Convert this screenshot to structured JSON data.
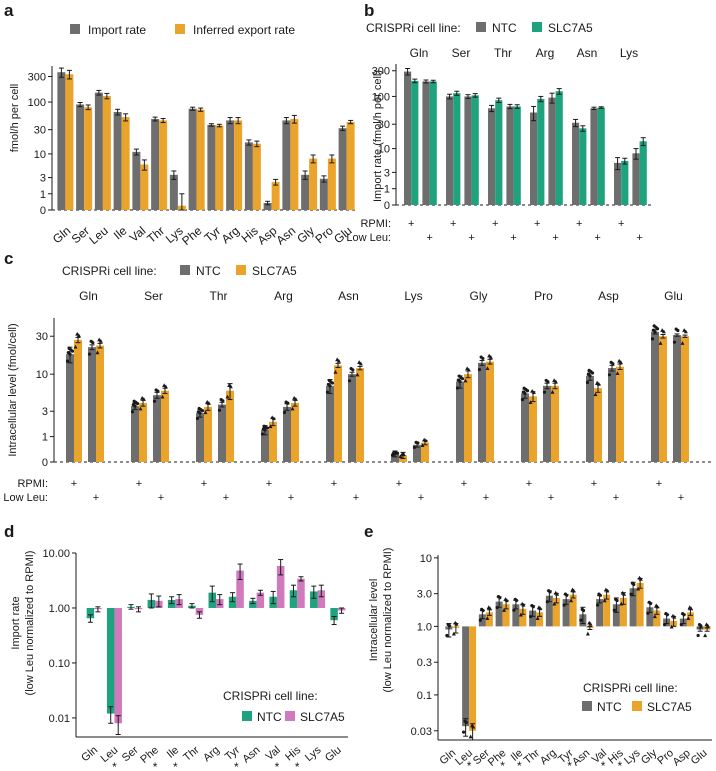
{
  "colors": {
    "gray": "#6e6e6e",
    "orange": "#eaa42b",
    "green": "#1fa37f",
    "pink": "#d079bd",
    "dark": "#1a1a1a"
  },
  "chart_data": [
    {
      "panel": "a",
      "type": "bar",
      "title": "",
      "ylabel": "fmol/h per cell",
      "xlabel": "",
      "yscale": "pseudo-log",
      "yticks": [
        "0",
        "1",
        "3",
        "10",
        "30",
        "100",
        "300"
      ],
      "legend": {
        "placement": "top",
        "items": [
          "Import rate",
          "Inferred export rate"
        ]
      },
      "categories": [
        "Gln",
        "Ser",
        "Leu",
        "Ile",
        "Val",
        "Thr",
        "Lys",
        "Phe",
        "Tyr",
        "Arg",
        "His",
        "Asp",
        "Asn",
        "Gly",
        "Pro",
        "Glu"
      ],
      "series": [
        {
          "name": "Import rate",
          "color": "gray",
          "values": [
            360,
            90,
            150,
            65,
            11,
            48,
            3.5,
            75,
            37,
            45,
            17,
            0.35,
            45,
            3.5,
            2.8,
            32
          ],
          "errors": [
            70,
            8,
            15,
            8,
            1.5,
            4,
            0.8,
            5,
            2,
            6,
            2,
            0.1,
            6,
            0.8,
            0.5,
            3
          ]
        },
        {
          "name": "Inferred export rate",
          "color": "orange",
          "values": [
            330,
            80,
            130,
            52,
            6,
            45,
            0.2,
            72,
            36,
            45,
            16,
            2.3,
            48,
            8,
            8,
            42
          ],
          "errors": [
            60,
            8,
            15,
            8,
            1.5,
            4,
            0.8,
            5,
            2,
            6,
            2,
            0.4,
            8,
            1.5,
            1.5,
            3
          ]
        }
      ]
    },
    {
      "panel": "b",
      "type": "bar",
      "title": "",
      "ylabel": "Import rate (fmol/h per cell)",
      "yscale": "pseudo-log",
      "yticks": [
        "0",
        "1",
        "3",
        "10",
        "30",
        "100",
        "300"
      ],
      "legend": {
        "placement": "top",
        "title": "CRISPRi cell line:",
        "items": [
          "NTC",
          "SLC7A5"
        ]
      },
      "categories": [
        "Gln",
        "Ser",
        "Thr",
        "Arg",
        "Asn",
        "Lys"
      ],
      "condition_rows": [
        "RPMI:",
        "Low Leu:"
      ],
      "condition_marks": [
        "+",
        "+"
      ],
      "series": [
        {
          "name": "NTC RPMI",
          "color": "gray",
          "values": [
            290,
            100,
            60,
            50,
            32,
            5
          ],
          "errors": [
            40,
            10,
            8,
            15,
            5,
            1.5
          ]
        },
        {
          "name": "SLC7A5 RPMI",
          "color": "green",
          "values": [
            195,
            115,
            85,
            90,
            25,
            5.5
          ],
          "errors": [
            15,
            10,
            8,
            10,
            3,
            0.8
          ]
        },
        {
          "name": "NTC Low Leu",
          "color": "gray",
          "values": [
            190,
            100,
            65,
            95,
            60,
            8
          ],
          "errors": [
            12,
            8,
            6,
            20,
            3,
            2
          ]
        },
        {
          "name": "SLC7A5 Low Leu",
          "color": "green",
          "values": [
            190,
            105,
            65,
            125,
            62,
            14
          ],
          "errors": [
            10,
            8,
            5,
            15,
            2,
            2.5
          ]
        }
      ]
    },
    {
      "panel": "c",
      "type": "bar",
      "title": "",
      "ylabel": "Intracellular level (fmol/cell)",
      "yscale": "pseudo-log",
      "yticks": [
        "0",
        "1",
        "3",
        "10",
        "30"
      ],
      "legend": {
        "placement": "top",
        "title": "CRISPRi cell line:",
        "items": [
          "NTC",
          "SLC7A5"
        ]
      },
      "categories": [
        "Gln",
        "Ser",
        "Thr",
        "Arg",
        "Asn",
        "Lys",
        "Gly",
        "Pro",
        "Asp",
        "Glu"
      ],
      "condition_rows": [
        "RPMI:",
        "Low Leu:"
      ],
      "condition_marks": [
        "+",
        "+"
      ],
      "series": [
        {
          "name": "NTC RPMI",
          "color": "gray",
          "values": [
            18,
            3.6,
            2.8,
            1.4,
            7,
            0.25,
            8,
            5.5,
            9.5,
            34
          ],
          "errors": [
            4,
            0.4,
            0.4,
            0.3,
            1.5,
            0.1,
            1.5,
            0.8,
            1.2,
            2
          ]
        },
        {
          "name": "SLC7A5 RPMI",
          "color": "orange",
          "values": [
            27,
            4,
            3.5,
            2,
            13,
            0.2,
            10,
            5,
            6.5,
            30
          ],
          "errors": [
            2,
            0.4,
            0.4,
            0.3,
            0.8,
            0.1,
            1,
            0.8,
            0.8,
            1.5
          ]
        },
        {
          "name": "NTC Low Leu",
          "color": "gray",
          "values": [
            22,
            5.2,
            3.8,
            3.5,
            10,
            0.6,
            14,
            7,
            12,
            31
          ],
          "errors": [
            1.5,
            0.5,
            0.3,
            0.4,
            0.6,
            0.1,
            1,
            0.6,
            1,
            1
          ]
        },
        {
          "name": "SLC7A5 Low Leu",
          "color": "orange",
          "values": [
            23,
            6,
            6,
            4,
            12,
            0.7,
            14.5,
            7,
            12.5,
            30
          ],
          "errors": [
            1.5,
            0.5,
            1.5,
            0.4,
            0.6,
            0.1,
            1,
            0.6,
            1,
            1
          ]
        }
      ]
    },
    {
      "panel": "d",
      "type": "bar",
      "title": "",
      "ylabel": "Import rate",
      "ylabel2": "(low Leu normalized to RPMI)",
      "yscale": "log",
      "baseline": 1,
      "yticks": [
        "0.01",
        "0.10",
        "1.00",
        "10.00"
      ],
      "legend": {
        "placement": "bottom-right",
        "title": "CRISPRi cell line:",
        "items": [
          "NTC",
          "SLC7A5"
        ]
      },
      "categories": [
        "Gln",
        "Leu",
        "Ser",
        "Phe",
        "Ile",
        "Thr",
        "Arg",
        "Tyr",
        "Asn",
        "Val",
        "His",
        "Lys",
        "Glu"
      ],
      "significance_mark": "*",
      "significant": [
        "Leu",
        "Phe",
        "Ile",
        "Tyr",
        "Val",
        "His"
      ],
      "series": [
        {
          "name": "NTC",
          "color": "green",
          "values": [
            0.65,
            0.012,
            1.05,
            1.4,
            1.4,
            1.1,
            1.9,
            1.6,
            1.35,
            1.6,
            2.1,
            2.0,
            0.6
          ],
          "errors": [
            0.1,
            0.004,
            0.1,
            0.4,
            0.2,
            0.1,
            0.6,
            0.3,
            0.15,
            0.4,
            0.5,
            0.5,
            0.1
          ]
        },
        {
          "name": "SLC7A5",
          "color": "pink",
          "values": [
            0.95,
            0.008,
            0.95,
            1.35,
            1.45,
            0.75,
            1.45,
            4.8,
            1.9,
            5.8,
            3.4,
            2.1,
            0.9
          ],
          "errors": [
            0.1,
            0.003,
            0.1,
            0.3,
            0.3,
            0.1,
            0.3,
            1.5,
            0.2,
            1.8,
            0.3,
            0.5,
            0.1
          ]
        }
      ]
    },
    {
      "panel": "e",
      "type": "bar",
      "title": "",
      "ylabel": "Intracellular level",
      "ylabel2": "(low Leu normalized to RPMI)",
      "yscale": "log",
      "baseline": 1,
      "yticks": [
        "0.03",
        "0.1",
        "0.3",
        "1.0",
        "3.0",
        "10"
      ],
      "legend": {
        "placement": "bottom-right",
        "title": "CRISPRi cell line:",
        "items": [
          "NTC",
          "SLC7A5"
        ]
      },
      "categories": [
        "Gln",
        "Leu",
        "Ser",
        "Phe",
        "Ile",
        "Thr",
        "Arg",
        "Tyr",
        "Asn",
        "Val",
        "His",
        "Lys",
        "Gly",
        "Pro",
        "Asp",
        "Glu"
      ],
      "significance_mark": "*",
      "significant": [
        "Leu",
        "Phe",
        "Ile",
        "Tyr",
        "Val",
        "His"
      ],
      "series": [
        {
          "name": "NTC",
          "color": "gray",
          "values": [
            0.9,
            0.035,
            1.5,
            2.3,
            2.1,
            1.7,
            2.8,
            2.5,
            1.5,
            2.5,
            2.1,
            3.6,
            1.9,
            1.3,
            1.3,
            0.9
          ],
          "errors": [
            0.2,
            0.01,
            0.2,
            0.4,
            0.3,
            0.3,
            0.5,
            0.4,
            0.4,
            0.3,
            0.5,
            0.8,
            0.3,
            0.2,
            0.2,
            0.05
          ]
        },
        {
          "name": "SLC7A5",
          "color": "orange",
          "values": [
            0.95,
            0.03,
            1.6,
            2.1,
            1.8,
            1.6,
            2.6,
            2.9,
            0.95,
            2.9,
            2.6,
            4.3,
            1.7,
            1.2,
            1.6,
            0.9
          ],
          "errors": [
            0.15,
            0.008,
            0.15,
            0.3,
            0.3,
            0.2,
            0.4,
            0.3,
            0.05,
            0.4,
            0.5,
            0.7,
            0.2,
            0.2,
            0.15,
            0.05
          ]
        }
      ]
    }
  ]
}
